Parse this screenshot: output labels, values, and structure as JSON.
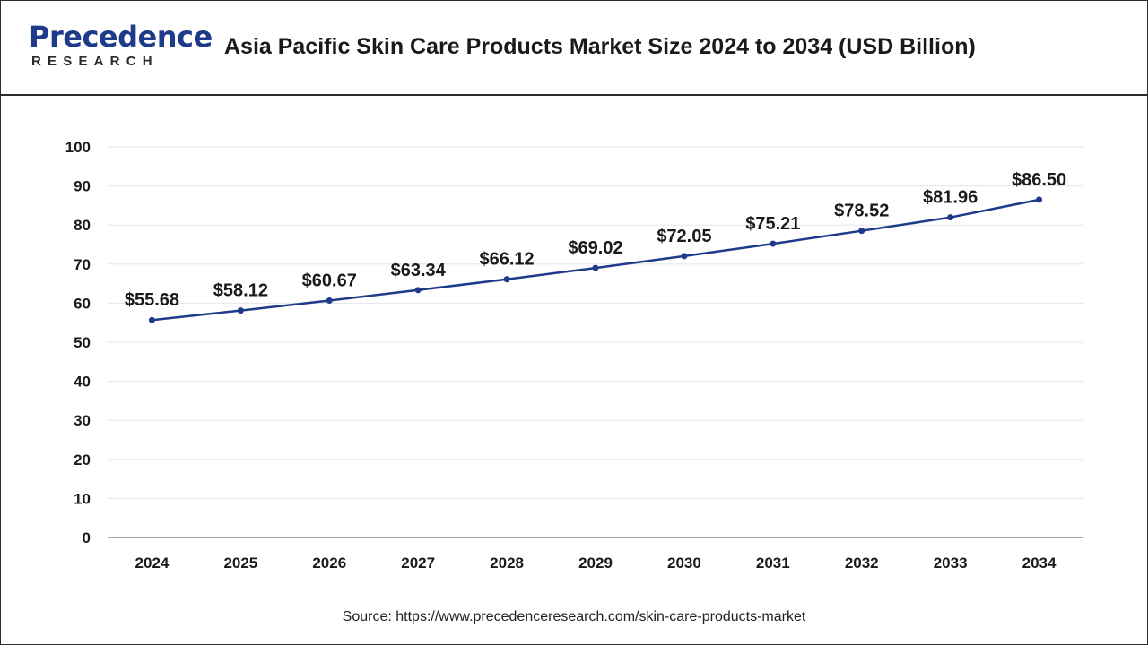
{
  "header": {
    "logo_main": "Precedence",
    "logo_sub": "RESEARCH",
    "title": "Asia Pacific Skin Care Products Market Size 2024 to 2034 (USD Billion)"
  },
  "footer": {
    "source": "Source: https://www.precedenceresearch.com/skin-care-products-market"
  },
  "colors": {
    "line": "#1e3a8a",
    "grid": "#e6e6e6",
    "axis": "#888888",
    "logo": "#1e3a8a"
  },
  "chart_data": {
    "type": "line",
    "title": "Asia Pacific Skin Care Products Market Size 2024 to 2034 (USD Billion)",
    "xlabel": "",
    "ylabel": "",
    "categories": [
      "2024",
      "2025",
      "2026",
      "2027",
      "2028",
      "2029",
      "2030",
      "2031",
      "2032",
      "2033",
      "2034"
    ],
    "values": [
      55.68,
      58.12,
      60.67,
      63.34,
      66.12,
      69.02,
      72.05,
      75.21,
      78.52,
      81.96,
      86.5
    ],
    "data_labels": [
      "$55.68",
      "$58.12",
      "$60.67",
      "$63.34",
      "$66.12",
      "$69.02",
      "$72.05",
      "$75.21",
      "$78.52",
      "$81.96",
      "$86.50"
    ],
    "ylim": [
      0,
      100
    ],
    "yticks": [
      0,
      10,
      20,
      30,
      40,
      50,
      60,
      70,
      80,
      90,
      100
    ],
    "grid": true,
    "legend": "none"
  }
}
